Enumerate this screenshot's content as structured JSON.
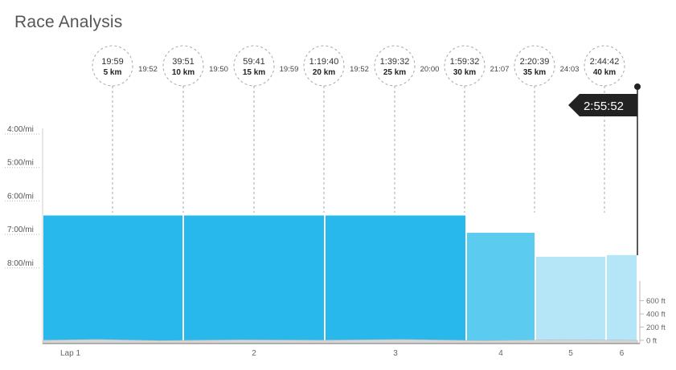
{
  "page": {
    "title": "Race Analysis"
  },
  "colors": {
    "lap_fast": "#29b8ec",
    "lap_mid": "#5ccbf0",
    "lap_slow": "#b4e6f8",
    "flag": "#222222",
    "gridline": "#bbbbbb"
  },
  "chart_data": {
    "type": "bar",
    "pace_axis": {
      "ticks": [
        "4:00/mi",
        "5:00/mi",
        "6:00/mi",
        "7:00/mi",
        "8:00/mi"
      ],
      "values_sec": [
        240,
        300,
        360,
        420,
        480
      ],
      "top_sec": 240
    },
    "elevation_axis": {
      "ticks": [
        "600 ft",
        "400 ft",
        "200 ft",
        "0 ft"
      ],
      "values": [
        600,
        400,
        200,
        0
      ]
    },
    "laps": [
      {
        "label": "Lap 1",
        "pace_sec": 386,
        "level": "fast"
      },
      {
        "label": "2",
        "pace_sec": 386,
        "level": "fast"
      },
      {
        "label": "3",
        "pace_sec": 386,
        "level": "fast"
      },
      {
        "label": "4",
        "pace_sec": 417,
        "level": "mid"
      },
      {
        "label": "5",
        "pace_sec": 460,
        "level": "slow"
      },
      {
        "label": "6",
        "pace_sec": 457,
        "level": "slow"
      }
    ],
    "splits": [
      {
        "time": "19:59",
        "distance": "5 km"
      },
      {
        "time": "39:51",
        "distance": "10 km"
      },
      {
        "time": "59:41",
        "distance": "15 km"
      },
      {
        "time": "1:19:40",
        "distance": "20 km"
      },
      {
        "time": "1:39:32",
        "distance": "25 km"
      },
      {
        "time": "1:59:32",
        "distance": "30 km"
      },
      {
        "time": "2:20:39",
        "distance": "35 km"
      },
      {
        "time": "2:44:42",
        "distance": "40 km"
      }
    ],
    "split_gaps": [
      "19:52",
      "19:50",
      "19:59",
      "19:52",
      "20:00",
      "21:07",
      "24:03"
    ],
    "finish_time": "2:55:52"
  }
}
